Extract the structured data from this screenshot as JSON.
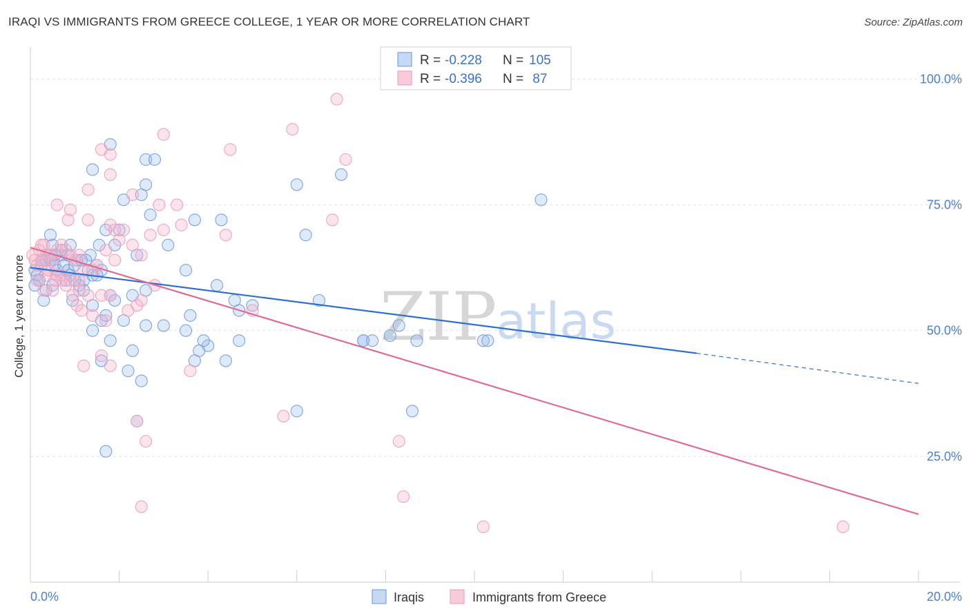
{
  "title": "IRAQI VS IMMIGRANTS FROM GREECE COLLEGE, 1 YEAR OR MORE CORRELATION CHART",
  "source": "Source: ZipAtlas.com",
  "legend": {
    "r_label": "R =",
    "n_label": "N =",
    "rows": [
      {
        "r": "-0.228",
        "n": "105"
      },
      {
        "r": "-0.396",
        "n": " 87"
      }
    ]
  },
  "watermark": {
    "zip": "ZIP",
    "atlas": "atlas"
  },
  "chart_data": {
    "type": "scatter",
    "ylabel": "College, 1 year or more",
    "xlim": [
      0,
      20
    ],
    "ylim": [
      0,
      105
    ],
    "x_tick_labels": [
      "0.0%",
      "20.0%"
    ],
    "y_ticks": [
      25,
      50,
      75,
      100
    ],
    "y_tick_labels": [
      "25.0%",
      "50.0%",
      "75.0%",
      "100.0%"
    ],
    "grid": true,
    "legend_position": "top-center",
    "series": [
      {
        "name": "Iraqis",
        "color": "#7aa3e0",
        "line_color": "#2f6fd0",
        "r": -0.228,
        "n": 105,
        "trend": {
          "x0": 0,
          "y0": 62.5,
          "x1": 15,
          "y1": 45.5,
          "dashed_to_x": 20,
          "dashed_to_y": 39.5
        },
        "points": [
          [
            0.1,
            62
          ],
          [
            0.15,
            61
          ],
          [
            0.2,
            60
          ],
          [
            0.25,
            63
          ],
          [
            0.3,
            64
          ],
          [
            0.35,
            64
          ],
          [
            0.4,
            65
          ],
          [
            0.45,
            64
          ],
          [
            0.5,
            64
          ],
          [
            0.55,
            63
          ],
          [
            0.6,
            62
          ],
          [
            0.7,
            65
          ],
          [
            0.75,
            63
          ],
          [
            0.8,
            60
          ],
          [
            0.85,
            62
          ],
          [
            0.9,
            61
          ],
          [
            1.0,
            63
          ],
          [
            1.05,
            64
          ],
          [
            1.1,
            59
          ],
          [
            1.2,
            60
          ],
          [
            1.3,
            62
          ],
          [
            1.35,
            65
          ],
          [
            1.4,
            61
          ],
          [
            1.5,
            63
          ],
          [
            1.55,
            67
          ],
          [
            1.6,
            62
          ],
          [
            0.45,
            69
          ],
          [
            0.9,
            67
          ],
          [
            1.7,
            70
          ],
          [
            1.9,
            67
          ],
          [
            2.0,
            70
          ],
          [
            2.4,
            65
          ],
          [
            3.1,
            67
          ],
          [
            2.3,
            57
          ],
          [
            2.6,
            58
          ],
          [
            1.8,
            57
          ],
          [
            1.9,
            56
          ],
          [
            0.35,
            58
          ],
          [
            0.95,
            56
          ],
          [
            1.2,
            58
          ],
          [
            1.5,
            61
          ],
          [
            0.6,
            61
          ],
          [
            1.0,
            60
          ],
          [
            0.5,
            59
          ],
          [
            0.2,
            60
          ],
          [
            0.1,
            59
          ],
          [
            3.5,
            62
          ],
          [
            3.7,
            72
          ],
          [
            4.3,
            72
          ],
          [
            4.2,
            59
          ],
          [
            4.6,
            56
          ],
          [
            4.7,
            54
          ],
          [
            6.0,
            79
          ],
          [
            6.2,
            69
          ],
          [
            2.6,
            79
          ],
          [
            2.6,
            84
          ],
          [
            2.8,
            84
          ],
          [
            1.8,
            87
          ],
          [
            1.4,
            82
          ],
          [
            2.1,
            76
          ],
          [
            2.5,
            77
          ],
          [
            2.7,
            73
          ],
          [
            1.6,
            52
          ],
          [
            1.4,
            50
          ],
          [
            1.8,
            48
          ],
          [
            2.1,
            52
          ],
          [
            2.3,
            46
          ],
          [
            2.6,
            51
          ],
          [
            3.0,
            51
          ],
          [
            3.5,
            50
          ],
          [
            3.6,
            53
          ],
          [
            3.8,
            46
          ],
          [
            4.0,
            47
          ],
          [
            3.9,
            48
          ],
          [
            3.7,
            44
          ],
          [
            4.4,
            44
          ],
          [
            4.7,
            48
          ],
          [
            5.0,
            55
          ],
          [
            6.0,
            34
          ],
          [
            1.6,
            44
          ],
          [
            2.2,
            42
          ],
          [
            2.5,
            40
          ],
          [
            2.4,
            32
          ],
          [
            1.7,
            26
          ],
          [
            6.5,
            56
          ],
          [
            7.0,
            81
          ],
          [
            7.5,
            48
          ],
          [
            7.5,
            48
          ],
          [
            7.7,
            48
          ],
          [
            8.1,
            49
          ],
          [
            8.6,
            34
          ],
          [
            8.3,
            51
          ],
          [
            8.7,
            48
          ],
          [
            10.2,
            48
          ],
          [
            10.3,
            48
          ],
          [
            11.5,
            76
          ],
          [
            1.4,
            55
          ],
          [
            1.7,
            53
          ],
          [
            0.5,
            67
          ],
          [
            0.3,
            56
          ],
          [
            0.85,
            65
          ],
          [
            1.15,
            64
          ],
          [
            1.25,
            64
          ],
          [
            0.7,
            66
          ],
          [
            0.55,
            65
          ]
        ]
      },
      {
        "name": "Immigrants from Greece",
        "color": "#f0a3bd",
        "line_color": "#e06a94",
        "r": -0.396,
        "n": 87,
        "trend": {
          "x0": 0,
          "y0": 66.5,
          "x1": 20,
          "y1": 13.5
        },
        "points": [
          [
            0.05,
            65
          ],
          [
            0.1,
            64
          ],
          [
            0.15,
            63
          ],
          [
            0.2,
            66
          ],
          [
            0.25,
            67
          ],
          [
            0.3,
            67
          ],
          [
            0.35,
            65
          ],
          [
            0.4,
            62
          ],
          [
            0.5,
            64
          ],
          [
            0.6,
            66
          ],
          [
            0.7,
            67
          ],
          [
            0.8,
            66
          ],
          [
            0.9,
            65
          ],
          [
            1.0,
            64
          ],
          [
            1.1,
            60
          ],
          [
            1.2,
            62
          ],
          [
            0.15,
            60
          ],
          [
            0.3,
            58
          ],
          [
            0.5,
            58
          ],
          [
            0.7,
            61
          ],
          [
            0.8,
            59
          ],
          [
            0.95,
            57
          ],
          [
            1.05,
            55
          ],
          [
            1.15,
            54
          ],
          [
            1.3,
            57
          ],
          [
            1.4,
            62
          ],
          [
            0.4,
            62
          ],
          [
            0.6,
            61
          ],
          [
            0.9,
            60
          ],
          [
            1.1,
            58
          ],
          [
            1.5,
            63
          ],
          [
            1.6,
            57
          ],
          [
            1.7,
            66
          ],
          [
            1.9,
            64
          ],
          [
            2.0,
            68
          ],
          [
            2.1,
            70
          ],
          [
            2.3,
            67
          ],
          [
            2.5,
            65
          ],
          [
            2.7,
            69
          ],
          [
            3.0,
            70
          ],
          [
            1.3,
            72
          ],
          [
            1.8,
            71
          ],
          [
            1.9,
            70
          ],
          [
            2.9,
            75
          ],
          [
            3.3,
            75
          ],
          [
            0.6,
            75
          ],
          [
            0.85,
            72
          ],
          [
            0.9,
            74
          ],
          [
            1.3,
            78
          ],
          [
            1.8,
            81
          ],
          [
            1.8,
            85
          ],
          [
            1.6,
            86
          ],
          [
            2.3,
            77
          ],
          [
            2.4,
            55
          ],
          [
            2.5,
            56
          ],
          [
            2.8,
            59
          ],
          [
            1.4,
            53
          ],
          [
            1.7,
            52
          ],
          [
            1.8,
            57
          ],
          [
            1.6,
            45
          ],
          [
            1.8,
            43
          ],
          [
            1.2,
            43
          ],
          [
            2.4,
            32
          ],
          [
            2.6,
            28
          ],
          [
            2.5,
            15
          ],
          [
            3.6,
            42
          ],
          [
            4.5,
            86
          ],
          [
            4.4,
            69
          ],
          [
            5.0,
            54
          ],
          [
            5.7,
            33
          ],
          [
            5.9,
            90
          ],
          [
            6.8,
            72
          ],
          [
            6.9,
            96
          ],
          [
            7.1,
            84
          ],
          [
            8.3,
            28
          ],
          [
            8.4,
            17
          ],
          [
            10.2,
            11
          ],
          [
            18.3,
            11
          ],
          [
            3.0,
            89
          ],
          [
            3.4,
            71
          ],
          [
            0.7,
            60
          ],
          [
            1.1,
            65
          ],
          [
            2.2,
            54
          ],
          [
            0.45,
            65
          ],
          [
            0.25,
            64
          ],
          [
            0.35,
            61
          ],
          [
            0.55,
            60
          ]
        ]
      }
    ]
  }
}
